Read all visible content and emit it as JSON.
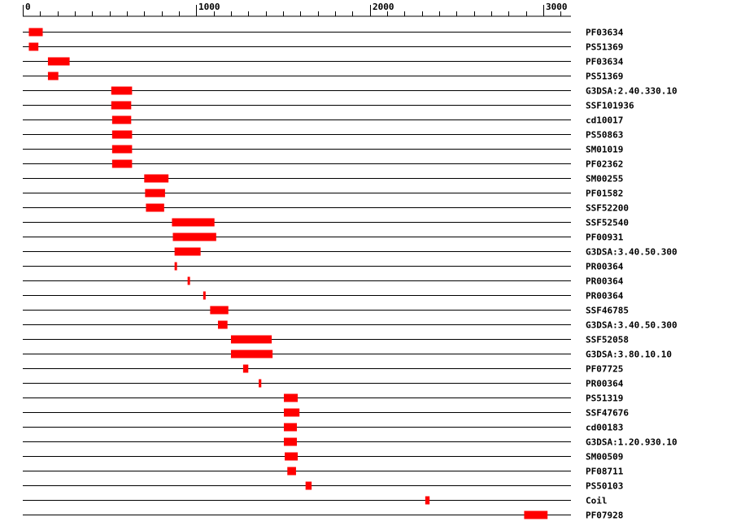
{
  "chart_data": {
    "type": "bar",
    "xlim": [
      0,
      3150
    ],
    "major_ticks": [
      0,
      1000,
      2000,
      3000
    ],
    "minor_step": 100,
    "grid": false,
    "bar_color": "#ff0000",
    "line_color": "#000000",
    "tracks": [
      {
        "label": "PF03634",
        "start": 35,
        "end": 115
      },
      {
        "label": "PS51369",
        "start": 35,
        "end": 90
      },
      {
        "label": "PF03634",
        "start": 145,
        "end": 270
      },
      {
        "label": "PS51369",
        "start": 145,
        "end": 205
      },
      {
        "label": "G3DSA:2.40.330.10",
        "start": 510,
        "end": 630
      },
      {
        "label": "SSF101936",
        "start": 510,
        "end": 625
      },
      {
        "label": "cd10017",
        "start": 515,
        "end": 625
      },
      {
        "label": "PS50863",
        "start": 515,
        "end": 630
      },
      {
        "label": "SM01019",
        "start": 515,
        "end": 630
      },
      {
        "label": "PF02362",
        "start": 515,
        "end": 630
      },
      {
        "label": "SM00255",
        "start": 700,
        "end": 840
      },
      {
        "label": "PF01582",
        "start": 705,
        "end": 820
      },
      {
        "label": "SSF52200",
        "start": 710,
        "end": 815
      },
      {
        "label": "SSF52540",
        "start": 860,
        "end": 1105
      },
      {
        "label": "PF00931",
        "start": 865,
        "end": 1115
      },
      {
        "label": "G3DSA:3.40.50.300",
        "start": 875,
        "end": 1025
      },
      {
        "label": "PR00364",
        "start": 875,
        "end": 888
      },
      {
        "label": "PR00364",
        "start": 950,
        "end": 963
      },
      {
        "label": "PR00364",
        "start": 1040,
        "end": 1053
      },
      {
        "label": "SSF46785",
        "start": 1080,
        "end": 1185
      },
      {
        "label": "G3DSA:3.40.50.300",
        "start": 1125,
        "end": 1180
      },
      {
        "label": "SSF52058",
        "start": 1200,
        "end": 1435
      },
      {
        "label": "G3DSA:3.80.10.10",
        "start": 1200,
        "end": 1440
      },
      {
        "label": "PF07725",
        "start": 1270,
        "end": 1300
      },
      {
        "label": "PR00364",
        "start": 1360,
        "end": 1375
      },
      {
        "label": "PS51319",
        "start": 1505,
        "end": 1585
      },
      {
        "label": "SSF47676",
        "start": 1505,
        "end": 1595
      },
      {
        "label": "cd00183",
        "start": 1505,
        "end": 1580
      },
      {
        "label": "G3DSA:1.20.930.10",
        "start": 1505,
        "end": 1580
      },
      {
        "label": "SM00509",
        "start": 1510,
        "end": 1585
      },
      {
        "label": "PF08711",
        "start": 1525,
        "end": 1575
      },
      {
        "label": "PS50103",
        "start": 1630,
        "end": 1665
      },
      {
        "label": "Coil",
        "start": 2320,
        "end": 2345
      },
      {
        "label": "PF07928",
        "start": 2890,
        "end": 3025
      }
    ]
  }
}
